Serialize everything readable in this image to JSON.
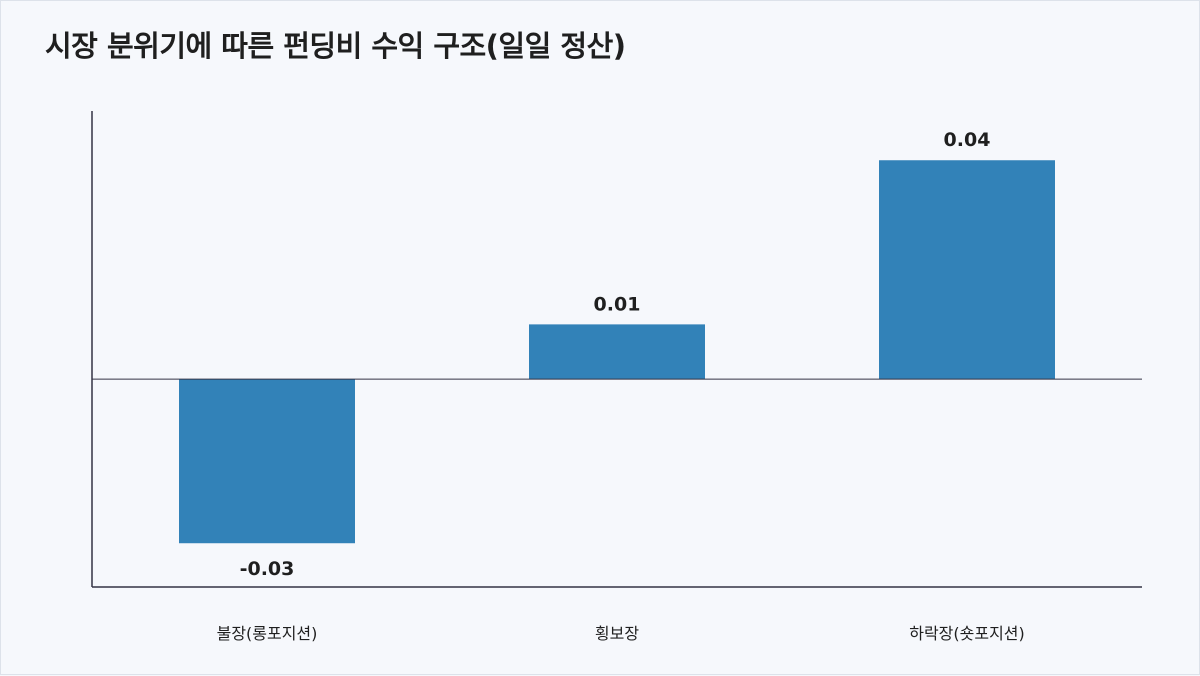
{
  "chart_data": {
    "type": "bar",
    "title": "시장 분위기에 따른 펀딩비 수익 구조(일일 정산)",
    "categories": [
      "불장(롱포지션)",
      "횡보장",
      "하락장(숏포지션)"
    ],
    "values": [
      -0.03,
      0.01,
      0.04
    ],
    "value_labels": [
      "-0.03",
      "0.01",
      "0.04"
    ],
    "xlabel": "",
    "ylabel": "",
    "ylim": [
      -0.038,
      0.049
    ],
    "grid": false,
    "bar_color": "#3282b8",
    "axis_color": "#333344"
  }
}
